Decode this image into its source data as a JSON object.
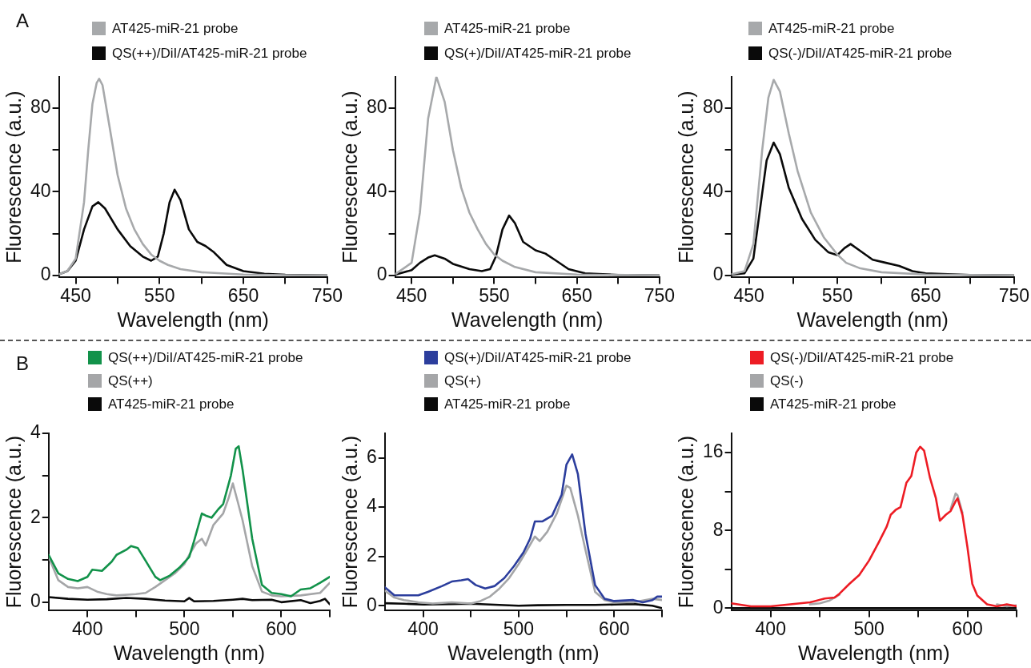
{
  "chart_data": [
    {
      "type": "line",
      "annotations": [
        "A"
      ],
      "legend": "top",
      "xlabel": "Wavelength (nm)",
      "ylabel": "Fluorescence (a.u.)",
      "xlim": [
        430,
        750
      ],
      "xticks": [
        450,
        {
          "value": 500,
          "label": null
        },
        550,
        {
          "value": 600,
          "label": null
        },
        650,
        {
          "value": 700,
          "label": null
        },
        750
      ],
      "ylim": [
        -1,
        95
      ],
      "yticks": [
        0,
        {
          "value": 20,
          "label": null
        },
        40,
        {
          "value": 60,
          "label": null
        },
        80
      ],
      "grid": false,
      "marker": "none",
      "line_style": "solid",
      "series": [
        {
          "name": "AT425-miR-21 probe",
          "color": "#a7a9ab",
          "x": [
            430,
            440,
            450,
            460,
            465,
            470,
            475,
            478,
            482,
            490,
            500,
            510,
            520,
            530,
            540,
            550,
            560,
            575,
            600,
            650,
            700,
            750
          ],
          "values": [
            0.5,
            2,
            8,
            35,
            60,
            82,
            92,
            94,
            91,
            72,
            48,
            32,
            22,
            15,
            10,
            7,
            5,
            3,
            1.5,
            0.4,
            0.1,
            0
          ]
        },
        {
          "name": "QS(++)/DiI/AT425-miR-21 probe",
          "color": "#0a0a0a",
          "x": [
            430,
            440,
            450,
            460,
            470,
            477,
            485,
            500,
            515,
            530,
            540,
            548,
            555,
            562,
            568,
            575,
            585,
            595,
            605,
            615,
            630,
            650,
            675,
            700,
            750
          ],
          "values": [
            0.5,
            2,
            7,
            22,
            33,
            35,
            32,
            22,
            14,
            9,
            7,
            9,
            20,
            35,
            41,
            36,
            22,
            16,
            14,
            11,
            5,
            2,
            0.8,
            0.3,
            0
          ]
        }
      ]
    },
    {
      "type": "line",
      "legend": "top",
      "xlabel": "Wavelength (nm)",
      "ylabel": "Fluorescence (a.u.)",
      "xlim": [
        430,
        750
      ],
      "xticks": [
        450,
        {
          "value": 500,
          "label": null
        },
        550,
        {
          "value": 600,
          "label": null
        },
        650,
        {
          "value": 700,
          "label": null
        },
        750
      ],
      "ylim": [
        -1,
        95
      ],
      "yticks": [
        0,
        {
          "value": 20,
          "label": null
        },
        40,
        {
          "value": 60,
          "label": null
        },
        80
      ],
      "grid": false,
      "marker": "none",
      "line_style": "solid",
      "series": [
        {
          "name": "AT425-miR-21 probe",
          "color": "#a7a9ab",
          "x": [
            430,
            450,
            460,
            470,
            480,
            490,
            500,
            510,
            520,
            530,
            540,
            550,
            560,
            575,
            600,
            650,
            750
          ],
          "values": [
            0.5,
            6,
            30,
            75,
            95,
            83,
            60,
            42,
            30,
            22,
            15,
            10,
            7,
            4,
            1.5,
            0.4,
            0
          ]
        },
        {
          "name": "QS(+)/DiI/AT425-miR-21 probe",
          "color": "#0a0a0a",
          "x": [
            430,
            450,
            460,
            470,
            478,
            490,
            500,
            520,
            535,
            545,
            552,
            560,
            568,
            575,
            585,
            600,
            612,
            625,
            640,
            660,
            700,
            750
          ],
          "values": [
            0.3,
            2.5,
            6,
            8.5,
            9.6,
            8,
            5.5,
            3,
            2,
            3,
            9,
            22,
            28.6,
            25,
            16,
            12,
            10.4,
            7,
            3,
            1,
            0.2,
            0
          ]
        }
      ]
    },
    {
      "type": "line",
      "legend": "top",
      "xlabel": "Wavelength (nm)",
      "ylabel": "Fluorescence (a.u.)",
      "xlim": [
        430,
        750
      ],
      "xticks": [
        450,
        {
          "value": 500,
          "label": null
        },
        550,
        {
          "value": 600,
          "label": null
        },
        650,
        {
          "value": 700,
          "label": null
        },
        750
      ],
      "ylim": [
        -1,
        95
      ],
      "yticks": [
        0,
        {
          "value": 20,
          "label": null
        },
        40,
        {
          "value": 60,
          "label": null
        },
        80
      ],
      "grid": false,
      "marker": "none",
      "line_style": "solid",
      "series": [
        {
          "name": "AT425-miR-21 probe",
          "color": "#a7a9ab",
          "x": [
            430,
            445,
            455,
            465,
            472,
            478,
            485,
            495,
            505,
            520,
            535,
            550,
            560,
            575,
            600,
            650,
            750
          ],
          "values": [
            0.5,
            2,
            15,
            60,
            85,
            93.5,
            88,
            68,
            50,
            30,
            18,
            10,
            6,
            3.5,
            1.5,
            0.4,
            0
          ]
        },
        {
          "name": "QS(-)/DiI/AT425-miR-21 probe",
          "color": "#0a0a0a",
          "x": [
            430,
            445,
            455,
            462,
            470,
            478,
            485,
            495,
            510,
            525,
            540,
            550,
            558,
            565,
            575,
            590,
            605,
            620,
            635,
            650,
            700,
            750
          ],
          "values": [
            0.3,
            1,
            8,
            30,
            55,
            63.5,
            58,
            42,
            27,
            17,
            11,
            9.7,
            13,
            15,
            12,
            7.5,
            6,
            4.5,
            2,
            1,
            0.2,
            0
          ]
        }
      ]
    },
    {
      "type": "line",
      "annotations": [
        "B"
      ],
      "legend": "top",
      "xlabel": "Wavelength (nm)",
      "ylabel": "Fluorescence (a.u.)",
      "xlim": [
        360,
        650
      ],
      "xticks": [
        400,
        {
          "value": 450,
          "label": null
        },
        500,
        {
          "value": 550,
          "label": null
        },
        600,
        {
          "value": 650,
          "label": null
        }
      ],
      "ylim": [
        -0.2,
        4
      ],
      "yticks": [
        0,
        {
          "value": 1,
          "label": null
        },
        2,
        {
          "value": 3,
          "label": null
        },
        4
      ],
      "grid": false,
      "marker": "none",
      "line_style": "solid",
      "series": [
        {
          "name": "QS(++)/DiI/AT425-miR-21 probe",
          "color": "#12924a",
          "x": [
            360,
            370,
            380,
            390,
            400,
            405,
            415,
            425,
            430,
            440,
            445,
            452,
            460,
            470,
            475,
            485,
            495,
            505,
            510,
            518,
            522,
            528,
            535,
            540,
            548,
            553,
            556,
            560,
            570,
            580,
            590,
            600,
            610,
            620,
            630,
            640,
            650
          ],
          "values": [
            1.12,
            0.68,
            0.55,
            0.5,
            0.6,
            0.77,
            0.74,
            0.96,
            1.12,
            1.24,
            1.33,
            1.28,
            0.98,
            0.6,
            0.52,
            0.63,
            0.82,
            1.07,
            1.45,
            2.1,
            2.05,
            2.0,
            2.2,
            2.32,
            3.0,
            3.63,
            3.69,
            3.14,
            1.5,
            0.41,
            0.22,
            0.19,
            0.14,
            0.3,
            0.33,
            0.46,
            0.6
          ]
        },
        {
          "name": "QS(++)",
          "color": "#a5a6a8",
          "x": [
            360,
            370,
            380,
            390,
            400,
            410,
            420,
            430,
            450,
            460,
            470,
            480,
            490,
            500,
            505,
            512,
            518,
            522,
            530,
            540,
            546,
            550,
            555,
            560,
            570,
            580,
            590,
            600,
            620,
            640,
            650
          ],
          "values": [
            1.07,
            0.52,
            0.36,
            0.33,
            0.36,
            0.25,
            0.19,
            0.16,
            0.19,
            0.22,
            0.36,
            0.52,
            0.68,
            0.9,
            1.12,
            1.39,
            1.5,
            1.34,
            1.83,
            2.1,
            2.49,
            2.81,
            2.38,
            1.94,
            0.85,
            0.25,
            0.16,
            0.14,
            0.16,
            0.22,
            0.46
          ]
        },
        {
          "name": "AT425-miR-21 probe",
          "color": "#0a0a0a",
          "x": [
            360,
            380,
            400,
            420,
            440,
            460,
            480,
            500,
            505,
            510,
            530,
            550,
            560,
            570,
            590,
            600,
            620,
            630,
            640,
            645,
            650
          ],
          "values": [
            0.12,
            0.08,
            0.06,
            0.07,
            0.1,
            0.08,
            0.04,
            0.02,
            0.1,
            0.02,
            0.03,
            0.06,
            0.08,
            0.05,
            0.06,
            0,
            0.05,
            -0.02,
            0.03,
            0.08,
            -0.05
          ]
        }
      ]
    },
    {
      "type": "line",
      "legend": "top",
      "xlabel": "Wavelength (nm)",
      "ylabel": "Fluorescence (a.u.)",
      "xlim": [
        360,
        650
      ],
      "xticks": [
        400,
        {
          "value": 450,
          "label": null
        },
        500,
        {
          "value": 550,
          "label": null
        },
        600,
        {
          "value": 650,
          "label": null
        }
      ],
      "ylim": [
        -0.2,
        7
      ],
      "yticks": [
        0,
        2,
        4,
        6
      ],
      "grid": false,
      "marker": "none",
      "line_style": "solid",
      "series": [
        {
          "name": "QS(+)/DiI/AT425-miR-21 probe",
          "color": "#2c3e9d",
          "x": [
            360,
            370,
            380,
            395,
            405,
            420,
            430,
            440,
            447,
            455,
            465,
            475,
            485,
            495,
            505,
            512,
            517,
            525,
            535,
            545,
            550,
            556,
            562,
            570,
            580,
            590,
            600,
            620,
            630,
            640,
            645,
            650
          ],
          "values": [
            0.75,
            0.42,
            0.42,
            0.42,
            0.56,
            0.8,
            0.98,
            1.03,
            1.08,
            0.84,
            0.7,
            0.8,
            1.12,
            1.6,
            2.16,
            2.72,
            3.42,
            3.42,
            3.65,
            4.5,
            5.72,
            6.14,
            5.34,
            2.9,
            0.84,
            0.28,
            0.19,
            0.23,
            0.14,
            0.23,
            0.37,
            0.37
          ]
        },
        {
          "name": "QS(+)",
          "color": "#a5a6a8",
          "x": [
            360,
            370,
            380,
            395,
            410,
            430,
            450,
            460,
            470,
            480,
            490,
            500,
            510,
            517,
            522,
            530,
            540,
            550,
            554,
            562,
            570,
            580,
            590,
            600,
            620,
            640,
            650
          ],
          "values": [
            0.61,
            0.33,
            0.23,
            0.14,
            0.09,
            0.14,
            0.09,
            0.19,
            0.37,
            0.7,
            1.12,
            1.69,
            2.34,
            2.81,
            2.62,
            3.0,
            3.75,
            4.87,
            4.78,
            3.65,
            2.25,
            0.56,
            0.23,
            0.14,
            0.14,
            0.28,
            0.23
          ]
        },
        {
          "name": "AT425-miR-21 probe",
          "color": "#0a0a0a",
          "x": [
            360,
            380,
            400,
            430,
            450,
            480,
            500,
            520,
            550,
            580,
            600,
            620,
            640,
            650
          ],
          "values": [
            0.1,
            0.08,
            0.05,
            0.07,
            0.08,
            0.03,
            0,
            0.02,
            0.03,
            0.03,
            0.05,
            0.07,
            0,
            -0.1
          ]
        }
      ]
    },
    {
      "type": "line",
      "legend": "top",
      "xlabel": "Wavelength (nm)",
      "ylabel": "Fluorescence (a.u.)",
      "xlim": [
        360,
        650
      ],
      "xticks": [
        400,
        {
          "value": 450,
          "label": null
        },
        500,
        {
          "value": 550,
          "label": null
        },
        600,
        {
          "value": 650,
          "label": null
        }
      ],
      "ylim": [
        -0.25,
        18
      ],
      "yticks": [
        0,
        {
          "value": 4,
          "label": null
        },
        8,
        {
          "value": 12,
          "label": null
        },
        16
      ],
      "grid": false,
      "marker": "none",
      "line_style": "solid",
      "series": [
        {
          "name": "QS(-)/DiI/AT425-miR-21 probe",
          "color": "#ed1c24",
          "x": [
            360,
            380,
            400,
            420,
            440,
            455,
            465,
            470,
            480,
            490,
            500,
            510,
            518,
            522,
            527,
            532,
            538,
            543,
            548,
            552,
            556,
            562,
            568,
            572,
            578,
            583,
            588,
            590,
            595,
            600,
            605,
            610,
            620,
            630,
            640,
            650
          ],
          "values": [
            0.5,
            0.2,
            0.2,
            0.4,
            0.6,
            1,
            1.1,
            1.5,
            2.5,
            3.4,
            4.9,
            6.8,
            8.4,
            9.6,
            10.1,
            10.4,
            12.9,
            13.6,
            16,
            16.6,
            16.2,
            13.4,
            11.3,
            9,
            9.6,
            10,
            11,
            11.3,
            9.6,
            6.3,
            2.5,
            1.3,
            0.4,
            0.2,
            0.4,
            0.2
          ]
        },
        {
          "name": "QS(-)",
          "color": "#a5a6a8",
          "x": [
            440,
            450,
            460,
            470,
            480,
            490,
            500,
            510,
            518,
            522,
            527,
            532,
            538,
            543,
            548,
            552,
            556,
            562,
            568,
            572,
            578,
            583,
            588,
            590,
            595,
            600,
            605,
            610,
            620,
            630,
            640,
            650
          ],
          "values": [
            0.4,
            0.5,
            0.8,
            1.4,
            null,
            null,
            null,
            null,
            null,
            null,
            null,
            null,
            null,
            null,
            null,
            null,
            null,
            null,
            null,
            null,
            null,
            10.2,
            11.8,
            11.6,
            9.8,
            null,
            null,
            null,
            null,
            0.4,
            0.2,
            0.3
          ]
        },
        {
          "name": "AT425-miR-21 probe",
          "color": "#0a0a0a",
          "x": [
            360,
            400,
            450,
            500,
            550,
            600,
            650
          ],
          "values": [
            0,
            0,
            0,
            0,
            0,
            0,
            0
          ]
        }
      ]
    }
  ]
}
